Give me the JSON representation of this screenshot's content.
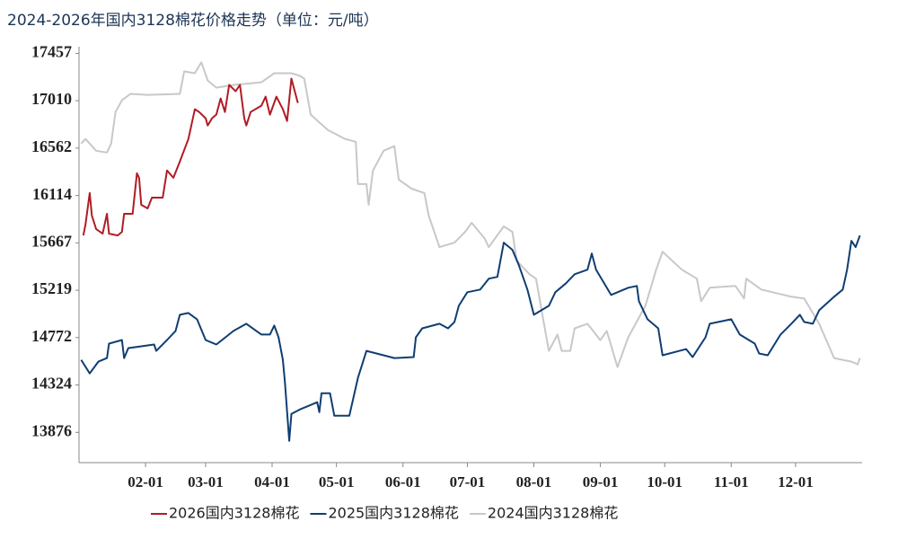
{
  "chart_data": {
    "type": "line",
    "title": "2024-2026年国内3128棉花价格走势（单位：元/吨）",
    "xlim": [
      0,
      365
    ],
    "xticks": [
      {
        "value": 31,
        "label": "02-01"
      },
      {
        "value": 59,
        "label": "03-01"
      },
      {
        "value": 90,
        "label": "04-01"
      },
      {
        "value": 120,
        "label": "05-01"
      },
      {
        "value": 151,
        "label": "06-01"
      },
      {
        "value": 181,
        "label": "07-01"
      },
      {
        "value": 212,
        "label": "08-01"
      },
      {
        "value": 243,
        "label": "09-01"
      },
      {
        "value": 273,
        "label": "10-01"
      },
      {
        "value": 304,
        "label": "11-01"
      },
      {
        "value": 334,
        "label": "12-01"
      }
    ],
    "ylim": [
      13590,
      17520
    ],
    "yticks": [
      13876,
      14324,
      14772,
      15219,
      15667,
      16114,
      16562,
      17010,
      17457
    ],
    "series": [
      {
        "name": "2026国内3128棉花",
        "color": "#b01c25",
        "x": [
          2,
          3,
          5,
          6,
          8,
          11,
          13,
          14,
          18,
          20,
          21,
          25,
          27,
          28,
          29,
          32,
          34,
          39,
          41,
          44,
          47,
          51,
          54,
          56,
          59,
          60,
          62,
          64,
          66,
          68,
          70,
          73,
          75,
          77,
          78,
          80,
          85,
          87,
          89,
          92,
          95,
          97,
          99,
          102
        ],
        "values": [
          15737,
          15839,
          16137,
          15924,
          15796,
          15754,
          15941,
          15754,
          15737,
          15771,
          15941,
          15941,
          16324,
          16282,
          16026,
          15992,
          16094,
          16094,
          16350,
          16282,
          16435,
          16648,
          16929,
          16903,
          16844,
          16776,
          16844,
          16878,
          17031,
          16903,
          17159,
          17099,
          17159,
          16844,
          16776,
          16903,
          16963,
          17048,
          16878,
          17048,
          16929,
          16818,
          17219,
          16989
        ]
      },
      {
        "name": "2025国内3128棉花",
        "color": "#0f3e72",
        "x": [
          1,
          5,
          9,
          13,
          14,
          20,
          21,
          23,
          35,
          36,
          41,
          45,
          47,
          51,
          55,
          59,
          64,
          72,
          78,
          85,
          89,
          91,
          93,
          95,
          96,
          98,
          99,
          103,
          108,
          111,
          112,
          113,
          117,
          119,
          126,
          130,
          134,
          142,
          147,
          156,
          157,
          160,
          168,
          172,
          175,
          177,
          181,
          187,
          191,
          195,
          198,
          202,
          205,
          209,
          212,
          219,
          222,
          227,
          231,
          237,
          239,
          241,
          248,
          256,
          260,
          261,
          265,
          270,
          272,
          283,
          286,
          292,
          294,
          304,
          308,
          315,
          317,
          321,
          327,
          332,
          336,
          338,
          342,
          345,
          352,
          356,
          358,
          360,
          362,
          364
        ],
        "values": [
          14561,
          14433,
          14544,
          14578,
          14715,
          14749,
          14578,
          14672,
          14706,
          14646,
          14749,
          14834,
          14987,
          15004,
          14945,
          14749,
          14706,
          14834,
          14902,
          14800,
          14800,
          14885,
          14774,
          14561,
          14348,
          13795,
          14050,
          14093,
          14135,
          14161,
          14067,
          14246,
          14246,
          14033,
          14033,
          14391,
          14646,
          14604,
          14578,
          14587,
          14774,
          14859,
          14902,
          14859,
          14919,
          15072,
          15200,
          15226,
          15328,
          15345,
          15669,
          15601,
          15456,
          15226,
          14987,
          15072,
          15200,
          15285,
          15370,
          15413,
          15566,
          15413,
          15175,
          15243,
          15260,
          15115,
          14945,
          14859,
          14604,
          14663,
          14587,
          14774,
          14902,
          14945,
          14800,
          14715,
          14621,
          14604,
          14800,
          14902,
          14987,
          14919,
          14902,
          15030,
          15158,
          15226,
          15413,
          15686,
          15626,
          15737
        ]
      },
      {
        "name": "2024国内3128棉花",
        "color": "#c8c8c8",
        "x": [
          1,
          3,
          8,
          13,
          15,
          17,
          20,
          24,
          32,
          47,
          49,
          54,
          57,
          60,
          64,
          72,
          85,
          91,
          99,
          103,
          105,
          108,
          116,
          124,
          129,
          130,
          134,
          135,
          137,
          142,
          147,
          149,
          155,
          161,
          163,
          168,
          175,
          180,
          183,
          189,
          191,
          198,
          202,
          204,
          210,
          213,
          216,
          219,
          223,
          225,
          229,
          231,
          237,
          243,
          246,
          251,
          256,
          264,
          269,
          272,
          281,
          288,
          290,
          294,
          306,
          310,
          311,
          318,
          332,
          338,
          345,
          352,
          360,
          363,
          364
        ],
        "values": [
          16605,
          16648,
          16537,
          16520,
          16605,
          16903,
          17014,
          17074,
          17065,
          17074,
          17287,
          17270,
          17372,
          17201,
          17133,
          17159,
          17184,
          17270,
          17270,
          17244,
          17219,
          16878,
          16733,
          16648,
          16622,
          16222,
          16222,
          16026,
          16350,
          16537,
          16580,
          16265,
          16179,
          16137,
          15924,
          15626,
          15669,
          15771,
          15856,
          15711,
          15626,
          15822,
          15771,
          15498,
          15370,
          15328,
          14987,
          14646,
          14800,
          14646,
          14646,
          14859,
          14902,
          14748,
          14834,
          14493,
          14774,
          15072,
          15413,
          15583,
          15413,
          15328,
          15115,
          15243,
          15260,
          15141,
          15328,
          15226,
          15158,
          15141,
          14902,
          14578,
          14544,
          14519,
          14578
        ]
      }
    ]
  }
}
